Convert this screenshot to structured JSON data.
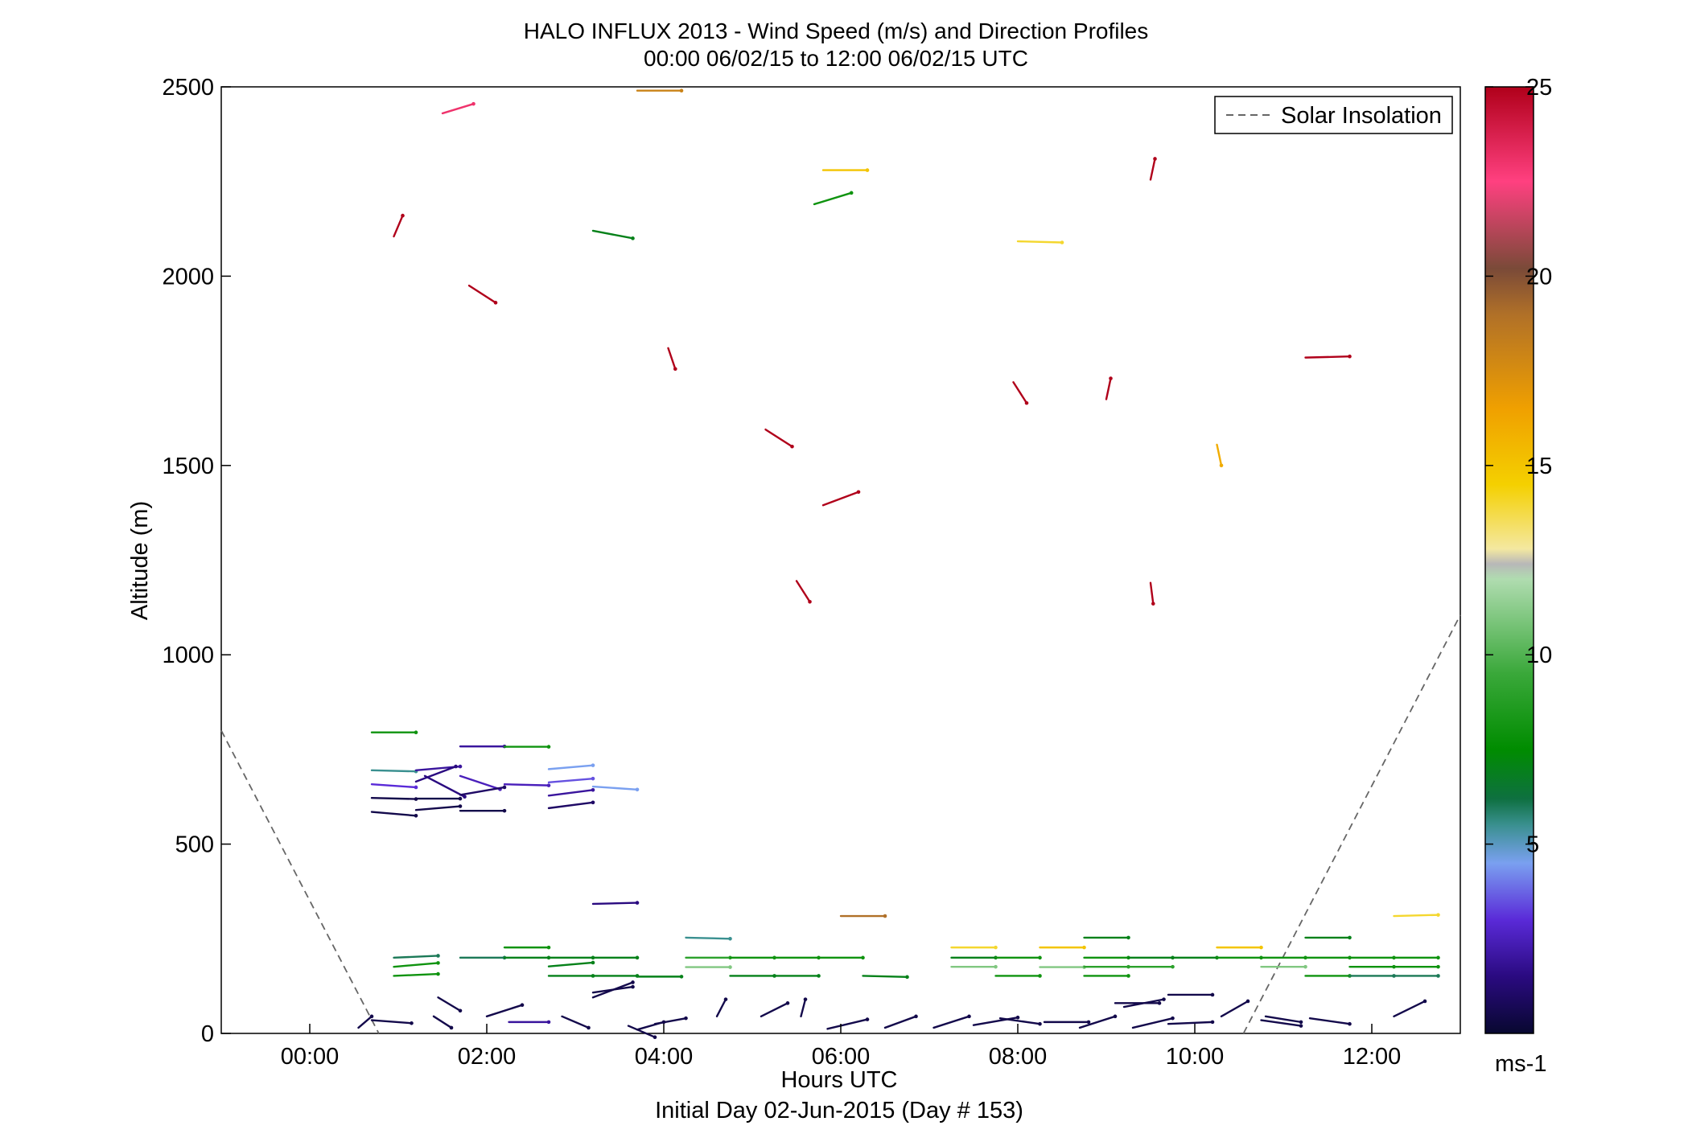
{
  "chart_data": {
    "type": "scatter",
    "title": "HALO INFLUX 2013 - Wind Speed (m/s) and Direction Profiles",
    "subtitle": "00:00 06/02/15 to 12:00 06/02/15  UTC",
    "xlabel": "Hours UTC",
    "x_sublabel": "Initial Day 02-Jun-2015 (Day # 153)",
    "ylabel": "Altitude (m)",
    "xlim": [
      -1,
      13
    ],
    "ylim": [
      0,
      2500
    ],
    "xticks": [
      0,
      2,
      4,
      6,
      8,
      10,
      12
    ],
    "xtick_labels": [
      "00:00",
      "02:00",
      "04:00",
      "06:00",
      "08:00",
      "10:00",
      "12:00"
    ],
    "yticks": [
      0,
      500,
      1000,
      1500,
      2000,
      2500
    ],
    "ytick_labels": [
      "0",
      "500",
      "1000",
      "1500",
      "2000",
      "2500"
    ],
    "legend": {
      "label": "Solar Insolation",
      "position": "top-right"
    },
    "colorbar": {
      "label": "ms-1",
      "range": [
        0,
        25
      ],
      "ticks": [
        5,
        10,
        15,
        20,
        25
      ],
      "tick_labels": [
        "5",
        "10",
        "15",
        "20",
        "25"
      ],
      "stops": [
        {
          "v": 0,
          "c": "#080830"
        },
        {
          "v": 1.5,
          "c": "#2a0a80"
        },
        {
          "v": 3,
          "c": "#5a2ad8"
        },
        {
          "v": 4.5,
          "c": "#7aa0f0"
        },
        {
          "v": 5.5,
          "c": "#3a9090"
        },
        {
          "v": 6.2,
          "c": "#0e7040"
        },
        {
          "v": 7.5,
          "c": "#008c00"
        },
        {
          "v": 9.5,
          "c": "#3aa83a"
        },
        {
          "v": 12,
          "c": "#b0dcb0"
        },
        {
          "v": 12.4,
          "c": "#b8b8b8"
        },
        {
          "v": 12.8,
          "c": "#f4e8a0"
        },
        {
          "v": 14.5,
          "c": "#f4d000"
        },
        {
          "v": 16.5,
          "c": "#f0a000"
        },
        {
          "v": 19,
          "c": "#b07028"
        },
        {
          "v": 20.2,
          "c": "#7a4a38"
        },
        {
          "v": 22.5,
          "c": "#ff4080"
        },
        {
          "v": 25,
          "c": "#b0001a"
        }
      ]
    },
    "solar_insolation": {
      "line_style": "dashed",
      "color": "#666666",
      "segments": [
        {
          "x": [
            -1,
            0.78
          ],
          "y": [
            800,
            0
          ]
        },
        {
          "x": [
            10.55,
            13
          ],
          "y": [
            0,
            1105
          ]
        }
      ]
    },
    "arrows": [
      {
        "x": 1.5,
        "y": 2430,
        "dx": 0.35,
        "dy": 25,
        "speed": 23
      },
      {
        "x": 0.95,
        "y": 2105,
        "dx": 0.1,
        "dy": 55,
        "speed": 25
      },
      {
        "x": 1.8,
        "y": 1975,
        "dx": 0.3,
        "dy": -45,
        "speed": 25
      },
      {
        "x": 3.7,
        "y": 2490,
        "dx": 0.5,
        "dy": 0,
        "speed": 18
      },
      {
        "x": 3.2,
        "y": 2120,
        "dx": 0.45,
        "dy": -20,
        "speed": 7
      },
      {
        "x": 4.05,
        "y": 1810,
        "dx": 0.08,
        "dy": -55,
        "speed": 25
      },
      {
        "x": 5.15,
        "y": 1595,
        "dx": 0.3,
        "dy": -45,
        "speed": 25
      },
      {
        "x": 5.8,
        "y": 2280,
        "dx": 0.5,
        "dy": 0,
        "speed": 15
      },
      {
        "x": 5.7,
        "y": 2190,
        "dx": 0.42,
        "dy": 30,
        "speed": 8
      },
      {
        "x": 5.8,
        "y": 1395,
        "dx": 0.4,
        "dy": 35,
        "speed": 25
      },
      {
        "x": 5.5,
        "y": 1195,
        "dx": 0.15,
        "dy": -55,
        "speed": 25
      },
      {
        "x": 6.0,
        "y": 310,
        "dx": 0.5,
        "dy": 0,
        "speed": 19
      },
      {
        "x": 7.95,
        "y": 1720,
        "dx": 0.15,
        "dy": -55,
        "speed": 25
      },
      {
        "x": 8.0,
        "y": 2092,
        "dx": 0.5,
        "dy": -3,
        "speed": 14
      },
      {
        "x": 9.0,
        "y": 1675,
        "dx": 0.05,
        "dy": 55,
        "speed": 25
      },
      {
        "x": 9.5,
        "y": 2255,
        "dx": 0.05,
        "dy": 55,
        "speed": 25
      },
      {
        "x": 9.5,
        "y": 1190,
        "dx": 0.03,
        "dy": -55,
        "speed": 25
      },
      {
        "x": 10.25,
        "y": 1555,
        "dx": 0.05,
        "dy": -55,
        "speed": 16
      },
      {
        "x": 11.25,
        "y": 1785,
        "dx": 0.5,
        "dy": 3,
        "speed": 25
      },
      {
        "x": 12.25,
        "y": 310,
        "dx": 0.5,
        "dy": 3,
        "speed": 14
      },
      {
        "x": 0.7,
        "y": 795,
        "dx": 0.5,
        "dy": 0,
        "speed": 8
      },
      {
        "x": 0.7,
        "y": 695,
        "dx": 0.5,
        "dy": -3,
        "speed": 5.5
      },
      {
        "x": 0.7,
        "y": 658,
        "dx": 0.5,
        "dy": -8,
        "speed": 3
      },
      {
        "x": 0.7,
        "y": 622,
        "dx": 0.5,
        "dy": -3,
        "speed": 0.5
      },
      {
        "x": 0.7,
        "y": 585,
        "dx": 0.5,
        "dy": -10,
        "speed": 0.5
      },
      {
        "x": 1.2,
        "y": 695,
        "dx": 0.5,
        "dy": 10,
        "speed": 2
      },
      {
        "x": 1.3,
        "y": 680,
        "dx": 0.45,
        "dy": -55,
        "speed": 1.5
      },
      {
        "x": 1.2,
        "y": 665,
        "dx": 0.45,
        "dy": 40,
        "speed": 1.5
      },
      {
        "x": 1.2,
        "y": 620,
        "dx": 0.5,
        "dy": 0,
        "speed": 0.5
      },
      {
        "x": 1.2,
        "y": 590,
        "dx": 0.5,
        "dy": 10,
        "speed": 0.5
      },
      {
        "x": 1.7,
        "y": 758,
        "dx": 0.5,
        "dy": 0,
        "speed": 2
      },
      {
        "x": 1.7,
        "y": 680,
        "dx": 0.45,
        "dy": -35,
        "speed": 2.5
      },
      {
        "x": 1.7,
        "y": 630,
        "dx": 0.5,
        "dy": 20,
        "speed": 1
      },
      {
        "x": 1.7,
        "y": 588,
        "dx": 0.5,
        "dy": 0,
        "speed": 0.5
      },
      {
        "x": 2.2,
        "y": 757,
        "dx": 0.5,
        "dy": 0,
        "speed": 8
      },
      {
        "x": 2.2,
        "y": 658,
        "dx": 0.5,
        "dy": -3,
        "speed": 2.5
      },
      {
        "x": 2.7,
        "y": 698,
        "dx": 0.5,
        "dy": 10,
        "speed": 4.5
      },
      {
        "x": 2.7,
        "y": 663,
        "dx": 0.5,
        "dy": 10,
        "speed": 3.5
      },
      {
        "x": 2.7,
        "y": 628,
        "dx": 0.5,
        "dy": 15,
        "speed": 2
      },
      {
        "x": 2.7,
        "y": 595,
        "dx": 0.5,
        "dy": 15,
        "speed": 1
      },
      {
        "x": 3.2,
        "y": 652,
        "dx": 0.5,
        "dy": -8,
        "speed": 4.5
      },
      {
        "x": 3.2,
        "y": 342,
        "dx": 0.5,
        "dy": 3,
        "speed": 1.5
      },
      {
        "x": 0.95,
        "y": 200,
        "dx": 0.5,
        "dy": 5,
        "speed": 6
      },
      {
        "x": 0.95,
        "y": 176,
        "dx": 0.5,
        "dy": 10,
        "speed": 8
      },
      {
        "x": 0.95,
        "y": 152,
        "dx": 0.5,
        "dy": 5,
        "speed": 8
      },
      {
        "x": 1.7,
        "y": 200,
        "dx": 0.5,
        "dy": 0,
        "speed": 6
      },
      {
        "x": 2.2,
        "y": 227,
        "dx": 0.5,
        "dy": 0,
        "speed": 8
      },
      {
        "x": 2.2,
        "y": 200,
        "dx": 0.5,
        "dy": 0,
        "speed": 7
      },
      {
        "x": 2.7,
        "y": 200,
        "dx": 0.5,
        "dy": 0,
        "speed": 7
      },
      {
        "x": 2.7,
        "y": 177,
        "dx": 0.5,
        "dy": 10,
        "speed": 7
      },
      {
        "x": 3.2,
        "y": 200,
        "dx": 0.5,
        "dy": 0,
        "speed": 7
      },
      {
        "x": 3.2,
        "y": 152,
        "dx": 0.5,
        "dy": 0,
        "speed": 7
      },
      {
        "x": 2.7,
        "y": 152,
        "dx": 0.5,
        "dy": 0,
        "speed": 7
      },
      {
        "x": 3.7,
        "y": 150,
        "dx": 0.5,
        "dy": 0,
        "speed": 7
      },
      {
        "x": 4.25,
        "y": 253,
        "dx": 0.5,
        "dy": -3,
        "speed": 5.5
      },
      {
        "x": 4.25,
        "y": 200,
        "dx": 0.5,
        "dy": 0,
        "speed": 9
      },
      {
        "x": 4.25,
        "y": 175,
        "dx": 0.5,
        "dy": 0,
        "speed": 11
      },
      {
        "x": 4.75,
        "y": 200,
        "dx": 0.5,
        "dy": 0,
        "speed": 8
      },
      {
        "x": 4.75,
        "y": 152,
        "dx": 0.5,
        "dy": 0,
        "speed": 7
      },
      {
        "x": 5.25,
        "y": 200,
        "dx": 0.5,
        "dy": 0,
        "speed": 8
      },
      {
        "x": 5.25,
        "y": 152,
        "dx": 0.5,
        "dy": 0,
        "speed": 7
      },
      {
        "x": 5.75,
        "y": 200,
        "dx": 0.5,
        "dy": 0,
        "speed": 8
      },
      {
        "x": 6.25,
        "y": 152,
        "dx": 0.5,
        "dy": -3,
        "speed": 7
      },
      {
        "x": 7.25,
        "y": 227,
        "dx": 0.5,
        "dy": 0,
        "speed": 14
      },
      {
        "x": 7.25,
        "y": 200,
        "dx": 0.5,
        "dy": 0,
        "speed": 7
      },
      {
        "x": 7.25,
        "y": 176,
        "dx": 0.5,
        "dy": 0,
        "speed": 11
      },
      {
        "x": 7.75,
        "y": 200,
        "dx": 0.5,
        "dy": 0,
        "speed": 8
      },
      {
        "x": 7.75,
        "y": 152,
        "dx": 0.5,
        "dy": 0,
        "speed": 8
      },
      {
        "x": 8.25,
        "y": 227,
        "dx": 0.5,
        "dy": 0,
        "speed": 15
      },
      {
        "x": 8.25,
        "y": 175,
        "dx": 0.5,
        "dy": 0,
        "speed": 11
      },
      {
        "x": 8.75,
        "y": 253,
        "dx": 0.5,
        "dy": 0,
        "speed": 7
      },
      {
        "x": 8.75,
        "y": 200,
        "dx": 0.5,
        "dy": 0,
        "speed": 8
      },
      {
        "x": 8.75,
        "y": 176,
        "dx": 0.5,
        "dy": 0,
        "speed": 9
      },
      {
        "x": 8.75,
        "y": 152,
        "dx": 0.5,
        "dy": 0,
        "speed": 8
      },
      {
        "x": 9.25,
        "y": 200,
        "dx": 0.5,
        "dy": 0,
        "speed": 7
      },
      {
        "x": 9.25,
        "y": 176,
        "dx": 0.5,
        "dy": 0,
        "speed": 9
      },
      {
        "x": 9.75,
        "y": 200,
        "dx": 0.5,
        "dy": 0,
        "speed": 7
      },
      {
        "x": 10.25,
        "y": 227,
        "dx": 0.5,
        "dy": 0,
        "speed": 15
      },
      {
        "x": 10.25,
        "y": 200,
        "dx": 0.5,
        "dy": 0,
        "speed": 8
      },
      {
        "x": 10.75,
        "y": 200,
        "dx": 0.5,
        "dy": 0,
        "speed": 8
      },
      {
        "x": 10.75,
        "y": 176,
        "dx": 0.5,
        "dy": 0,
        "speed": 11
      },
      {
        "x": 11.25,
        "y": 253,
        "dx": 0.5,
        "dy": 0,
        "speed": 7
      },
      {
        "x": 11.25,
        "y": 200,
        "dx": 0.5,
        "dy": 0,
        "speed": 8
      },
      {
        "x": 11.25,
        "y": 152,
        "dx": 0.5,
        "dy": 0,
        "speed": 8
      },
      {
        "x": 11.75,
        "y": 200,
        "dx": 0.5,
        "dy": 0,
        "speed": 8
      },
      {
        "x": 11.75,
        "y": 176,
        "dx": 0.5,
        "dy": 0,
        "speed": 8
      },
      {
        "x": 11.75,
        "y": 152,
        "dx": 0.5,
        "dy": 0,
        "speed": 6
      },
      {
        "x": 12.25,
        "y": 200,
        "dx": 0.5,
        "dy": 0,
        "speed": 8
      },
      {
        "x": 12.25,
        "y": 176,
        "dx": 0.5,
        "dy": 0,
        "speed": 8
      },
      {
        "x": 12.25,
        "y": 152,
        "dx": 0.5,
        "dy": 0,
        "speed": 6
      },
      {
        "x": 3.2,
        "y": 95,
        "dx": 0.45,
        "dy": 40,
        "speed": 0.5
      },
      {
        "x": 3.2,
        "y": 108,
        "dx": 0.45,
        "dy": 15,
        "speed": 0.5
      },
      {
        "x": 1.45,
        "y": 95,
        "dx": 0.25,
        "dy": -35,
        "speed": 0.5
      },
      {
        "x": 1.4,
        "y": 45,
        "dx": 0.2,
        "dy": -30,
        "speed": 0.5
      },
      {
        "x": 0.7,
        "y": 35,
        "dx": 0.45,
        "dy": -8,
        "speed": 0.5
      },
      {
        "x": 0.55,
        "y": 15,
        "dx": 0.15,
        "dy": 30,
        "speed": 0.5
      },
      {
        "x": 2.0,
        "y": 45,
        "dx": 0.4,
        "dy": 30,
        "speed": 0.5
      },
      {
        "x": 2.25,
        "y": 30,
        "dx": 0.45,
        "dy": 0,
        "speed": 2
      },
      {
        "x": 2.85,
        "y": 45,
        "dx": 0.3,
        "dy": -30,
        "speed": 0.5
      },
      {
        "x": 3.6,
        "y": 20,
        "dx": 0.3,
        "dy": -30,
        "speed": 0.5
      },
      {
        "x": 3.7,
        "y": 10,
        "dx": 0.3,
        "dy": 20,
        "speed": 0.5
      },
      {
        "x": 3.9,
        "y": 25,
        "dx": 0.35,
        "dy": 15,
        "speed": 0.5
      },
      {
        "x": 4.6,
        "y": 45,
        "dx": 0.1,
        "dy": 45,
        "speed": 0.5
      },
      {
        "x": 5.1,
        "y": 45,
        "dx": 0.3,
        "dy": 35,
        "speed": 0.5
      },
      {
        "x": 5.55,
        "y": 45,
        "dx": 0.05,
        "dy": 45,
        "speed": 0.5
      },
      {
        "x": 5.85,
        "y": 12,
        "dx": 0.45,
        "dy": 25,
        "speed": 0.5
      },
      {
        "x": 6.5,
        "y": 15,
        "dx": 0.35,
        "dy": 30,
        "speed": 0.5
      },
      {
        "x": 7.05,
        "y": 15,
        "dx": 0.4,
        "dy": 30,
        "speed": 0.5
      },
      {
        "x": 7.5,
        "y": 22,
        "dx": 0.5,
        "dy": 20,
        "speed": 0.5
      },
      {
        "x": 7.8,
        "y": 40,
        "dx": 0.45,
        "dy": -15,
        "speed": 0.5
      },
      {
        "x": 8.3,
        "y": 30,
        "dx": 0.5,
        "dy": 0,
        "speed": 0.5
      },
      {
        "x": 8.7,
        "y": 15,
        "dx": 0.4,
        "dy": 30,
        "speed": 0.5
      },
      {
        "x": 9.2,
        "y": 70,
        "dx": 0.45,
        "dy": 20,
        "speed": 0.5
      },
      {
        "x": 9.1,
        "y": 80,
        "dx": 0.5,
        "dy": 0,
        "speed": 0.5
      },
      {
        "x": 9.7,
        "y": 102,
        "dx": 0.5,
        "dy": 0,
        "speed": 0.5
      },
      {
        "x": 9.3,
        "y": 15,
        "dx": 0.45,
        "dy": 25,
        "speed": 0.5
      },
      {
        "x": 9.7,
        "y": 25,
        "dx": 0.5,
        "dy": 5,
        "speed": 0.5
      },
      {
        "x": 10.3,
        "y": 45,
        "dx": 0.3,
        "dy": 40,
        "speed": 0.5
      },
      {
        "x": 10.75,
        "y": 35,
        "dx": 0.45,
        "dy": -15,
        "speed": 0.5
      },
      {
        "x": 10.8,
        "y": 45,
        "dx": 0.4,
        "dy": -15,
        "speed": 0.5
      },
      {
        "x": 11.3,
        "y": 40,
        "dx": 0.45,
        "dy": -15,
        "speed": 0.5
      },
      {
        "x": 12.25,
        "y": 45,
        "dx": 0.35,
        "dy": 40,
        "speed": 0.5
      }
    ]
  }
}
